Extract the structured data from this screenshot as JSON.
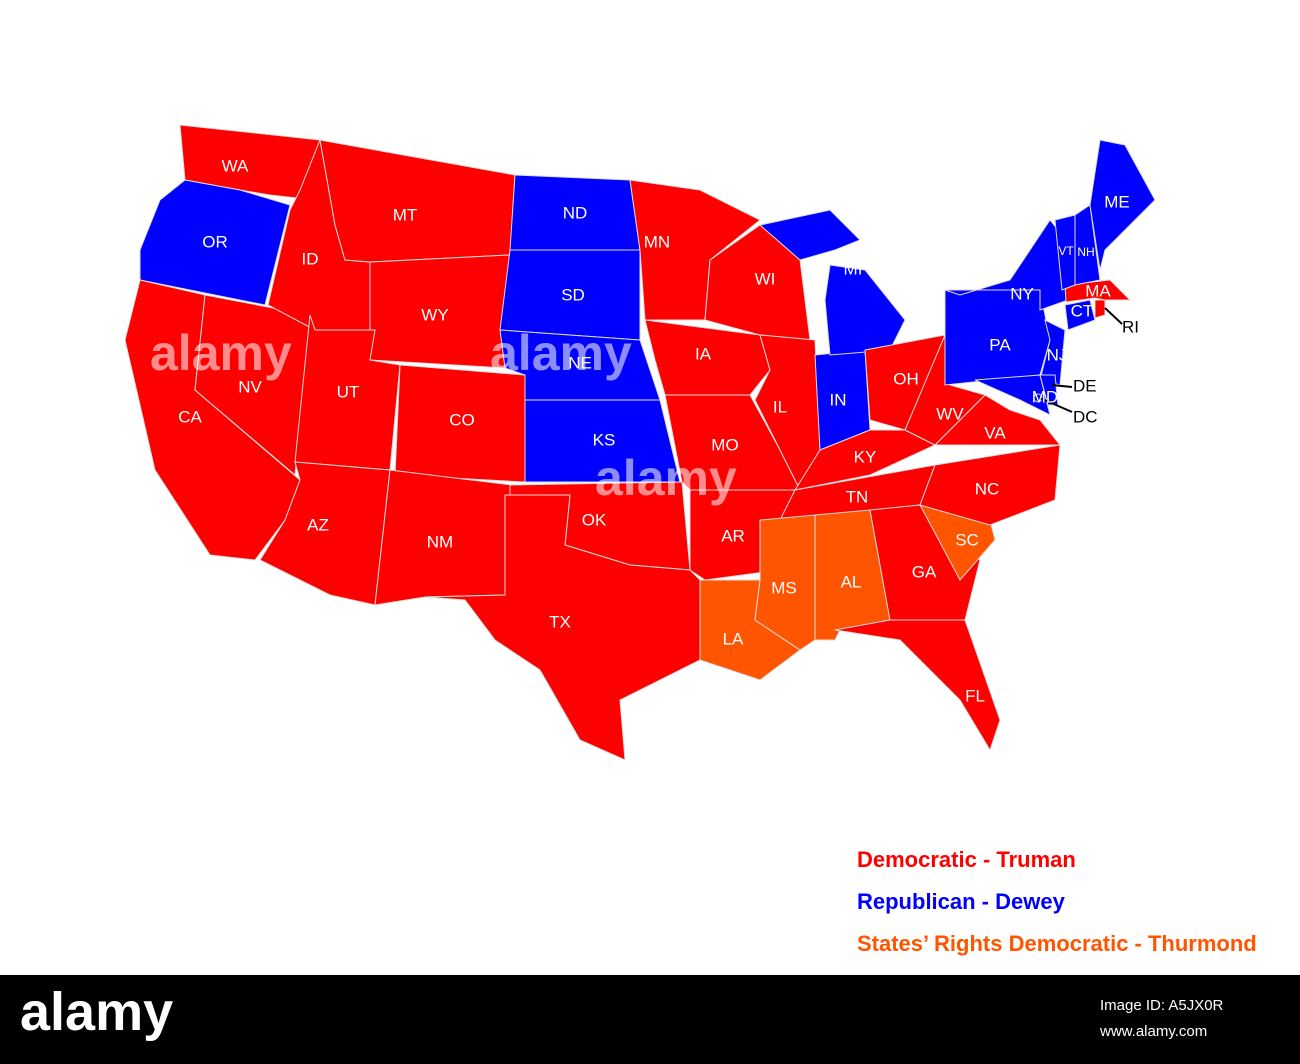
{
  "legend": [
    {
      "label": "Democratic - Truman",
      "color": "#ff0000",
      "states": [
        "WA",
        "ID",
        "MT",
        "WY",
        "CA",
        "NV",
        "UT",
        "CO",
        "AZ",
        "NM",
        "TX",
        "OK",
        "MN",
        "IA",
        "MO",
        "AR",
        "WI",
        "IL",
        "KY",
        "TN",
        "OH",
        "WV",
        "VA",
        "NC",
        "GA",
        "FL",
        "MA",
        "RI"
      ]
    },
    {
      "label": "Republican - Dewey",
      "color": "#0000ff",
      "states": [
        "OR",
        "ND",
        "SD",
        "NE",
        "KS",
        "MI",
        "IN",
        "NY",
        "PA",
        "NJ",
        "VT",
        "NH",
        "ME",
        "CT",
        "MD",
        "DE",
        "DC"
      ]
    },
    {
      "label": "States’ Rights Democratic - Thurmond",
      "color": "#ff5500",
      "states": [
        "LA",
        "MS",
        "AL",
        "SC"
      ]
    }
  ],
  "watermark": "alamy",
  "footer": {
    "logo": "alamy",
    "image_id": "Image ID: A5JX0R",
    "url": "www.alamy.com"
  }
}
